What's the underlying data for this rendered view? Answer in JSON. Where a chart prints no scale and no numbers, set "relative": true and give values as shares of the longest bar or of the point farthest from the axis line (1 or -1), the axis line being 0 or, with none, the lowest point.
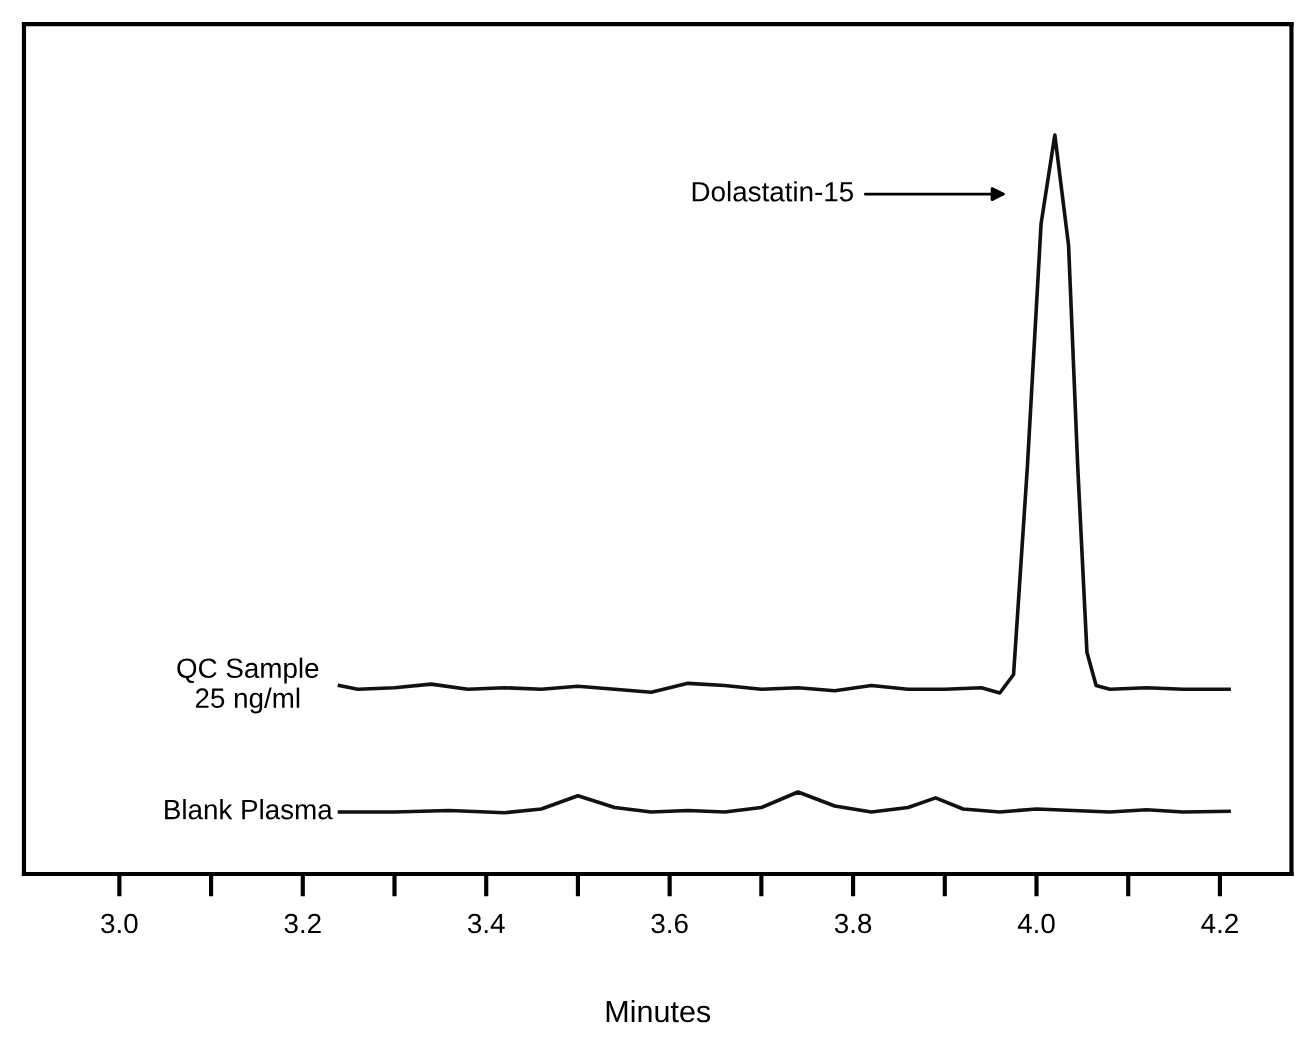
{
  "chart_data": {
    "type": "line",
    "relative": true,
    "xlabel": "Minutes",
    "xlim": [
      2.896,
      4.278
    ],
    "xticks": [
      {
        "value": 3.0,
        "label": "3.0"
      },
      {
        "value": 3.1,
        "label": null
      },
      {
        "value": 3.2,
        "label": "3.2"
      },
      {
        "value": 3.3,
        "label": null
      },
      {
        "value": 3.4,
        "label": "3.4"
      },
      {
        "value": 3.5,
        "label": null
      },
      {
        "value": 3.6,
        "label": "3.6"
      },
      {
        "value": 3.7,
        "label": null
      },
      {
        "value": 3.8,
        "label": "3.8"
      },
      {
        "value": 3.9,
        "label": null
      },
      {
        "value": 4.0,
        "label": "4.0"
      },
      {
        "value": 4.1,
        "label": null
      },
      {
        "value": 4.2,
        "label": "4.2"
      }
    ],
    "series": [
      {
        "name": "QC Sample\n25 ng/ml",
        "color": "#111111",
        "x": [
          3.24,
          3.26,
          3.3,
          3.34,
          3.38,
          3.42,
          3.46,
          3.5,
          3.54,
          3.58,
          3.62,
          3.66,
          3.7,
          3.74,
          3.78,
          3.82,
          3.86,
          3.9,
          3.94,
          3.96,
          3.975,
          3.99,
          4.005,
          4.02,
          4.035,
          4.045,
          4.055,
          4.065,
          4.08,
          4.12,
          4.16,
          4.21
        ],
        "values": [
          0.255,
          0.25,
          0.252,
          0.257,
          0.25,
          0.252,
          0.25,
          0.254,
          0.25,
          0.246,
          0.258,
          0.255,
          0.25,
          0.252,
          0.248,
          0.255,
          0.25,
          0.25,
          0.252,
          0.245,
          0.27,
          0.55,
          0.88,
          1.0,
          0.85,
          0.55,
          0.3,
          0.255,
          0.25,
          0.252,
          0.25,
          0.25
        ]
      },
      {
        "name": "Blank Plasma",
        "color": "#111111",
        "x": [
          3.24,
          3.3,
          3.36,
          3.42,
          3.46,
          3.5,
          3.54,
          3.58,
          3.62,
          3.66,
          3.7,
          3.74,
          3.78,
          3.82,
          3.86,
          3.89,
          3.92,
          3.96,
          4.0,
          4.04,
          4.08,
          4.12,
          4.16,
          4.21
        ],
        "values": [
          0.084,
          0.084,
          0.086,
          0.083,
          0.088,
          0.106,
          0.09,
          0.084,
          0.086,
          0.084,
          0.09,
          0.111,
          0.092,
          0.084,
          0.09,
          0.103,
          0.088,
          0.084,
          0.088,
          0.086,
          0.084,
          0.087,
          0.084,
          0.085
        ]
      }
    ],
    "annotations": [
      "Dolastatin-15"
    ],
    "grid": false,
    "legend": false,
    "marker": "none",
    "line_style": "solid"
  }
}
